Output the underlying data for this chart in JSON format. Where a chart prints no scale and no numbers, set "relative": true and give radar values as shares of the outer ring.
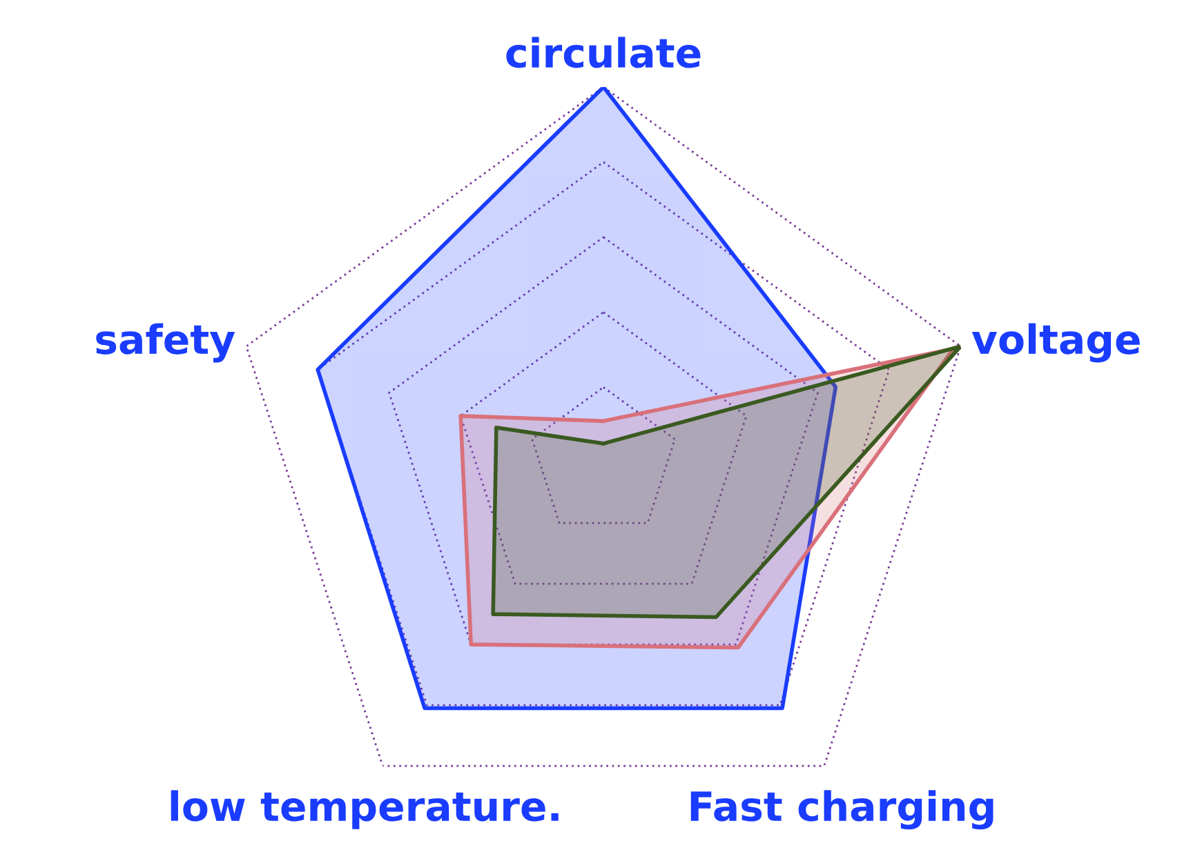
{
  "chart_data": {
    "type": "radar",
    "relative": true,
    "grid": true,
    "categories": [
      "circulate",
      "voltage",
      "Fast charging",
      "low temperature.",
      "safety"
    ],
    "series": [
      {
        "color": "#1a3cff",
        "values": [
          1.0,
          0.65,
          0.81,
          0.81,
          0.8
        ]
      },
      {
        "color": "#d9707a",
        "values": [
          0.11,
          0.98,
          0.61,
          0.6,
          0.4
        ]
      },
      {
        "color": "#3a5a20",
        "values": [
          0.05,
          1.0,
          0.51,
          0.5,
          0.3
        ]
      }
    ]
  }
}
